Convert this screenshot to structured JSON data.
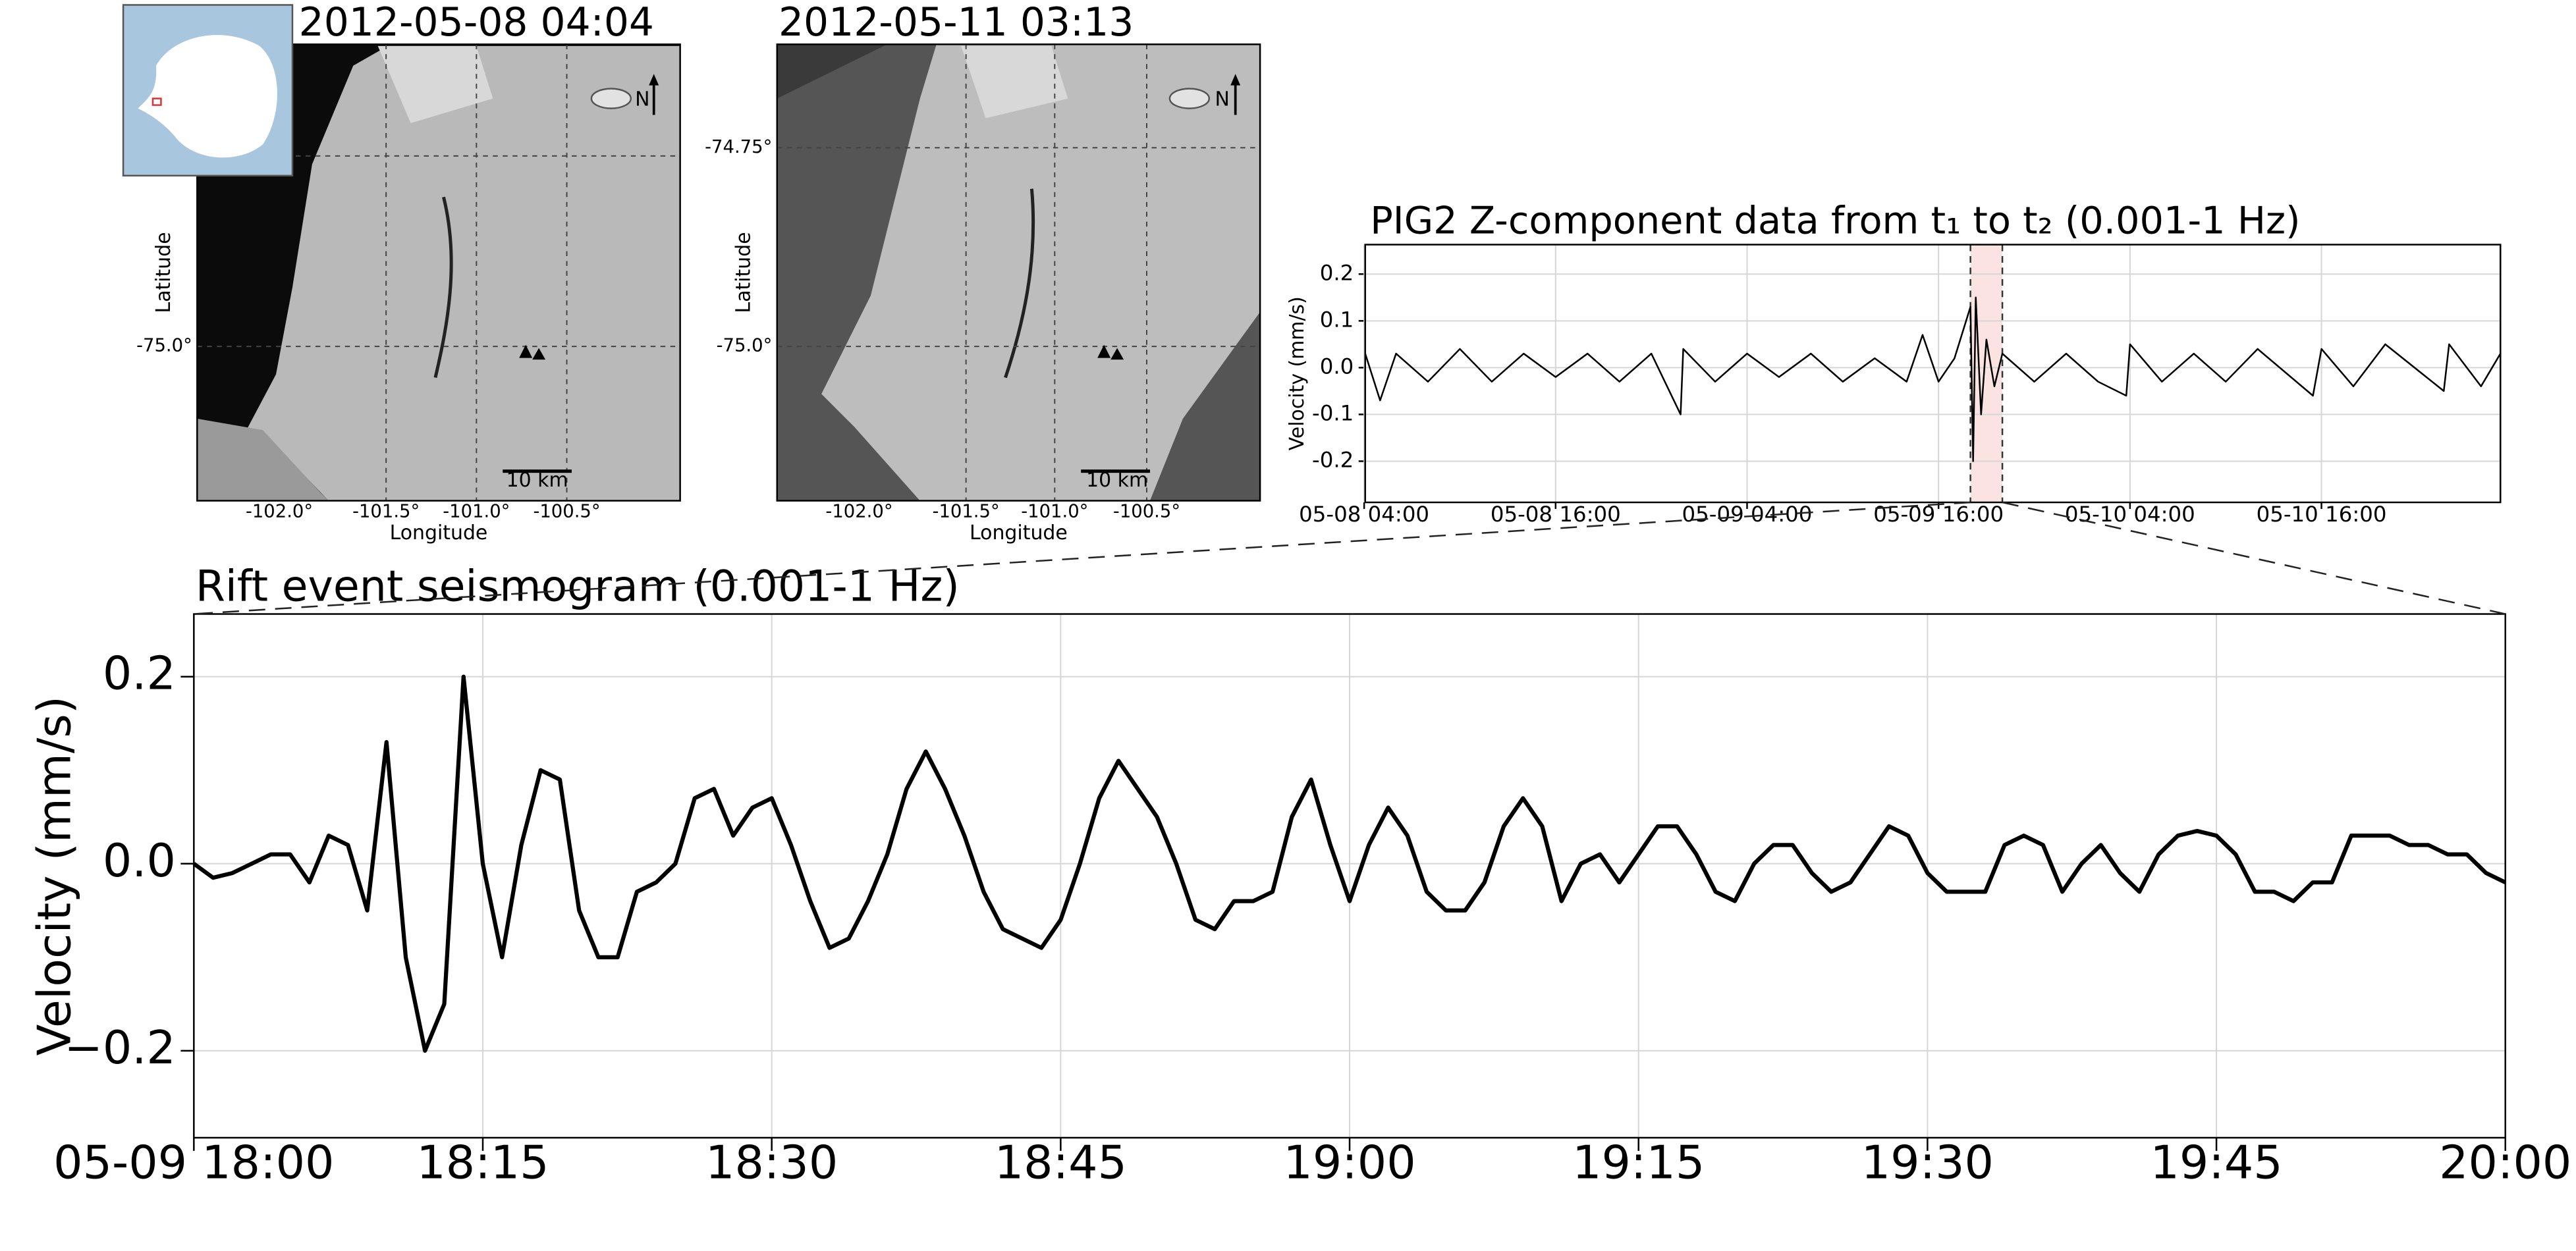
{
  "maps": [
    {
      "title": "2012-05-08 04:04",
      "xlabel": "Longitude",
      "ylabel": "Latitude",
      "xtick_labels": [
        "-102.0°",
        "-101.5°",
        "-101.0°",
        "-100.5°"
      ],
      "ytick_labels": [
        "-75.0°"
      ],
      "scalebar": "10 km",
      "north": "N"
    },
    {
      "title": "2012-05-11 03:13",
      "xlabel": "Longitude",
      "ylabel": "Latitude",
      "xtick_labels": [
        "-102.0°",
        "-101.5°",
        "-101.0°",
        "-100.5°"
      ],
      "ytick_labels": [
        "-74.75°",
        "-75.0°"
      ],
      "scalebar": "10 km",
      "north": "N"
    }
  ],
  "chart_data": [
    {
      "type": "line",
      "title": "PIG2 Z-component data from t₁ to t₂ (0.001-1 Hz)",
      "ylabel": "Velocity (mm/s)",
      "grid": true,
      "xlim": [
        "05-08 04:04",
        "05-11 03:13"
      ],
      "ylim": [
        -0.288,
        0.263
      ],
      "xticks": [
        "05-08 04:00",
        "05-08 16:00",
        "05-09 04:00",
        "05-09 16:00",
        "05-10 04:00",
        "05-10 16:00"
      ],
      "yticks": [
        0.2,
        0.1,
        {
          "value": 0,
          "label": "0.0"
        },
        -0.1,
        -0.2
      ],
      "highlight": [
        "05-09 18:00",
        "05-09 20:00"
      ],
      "highlight_color": "#fbe3e1",
      "x": [
        "05-08 04:04",
        "05-08 05:00",
        "05-08 06:00",
        "05-08 08:00",
        "05-08 10:00",
        "05-08 12:00",
        "05-08 14:00",
        "05-08 16:00",
        "05-08 18:00",
        "05-08 20:00",
        "05-08 22:00",
        "05-08 23:50",
        "05-09 00:00",
        "05-09 02:00",
        "05-09 04:00",
        "05-09 06:00",
        "05-09 08:00",
        "05-09 10:00",
        "05-09 12:00",
        "05-09 14:00",
        "05-09 15:00",
        "05-09 16:00",
        "05-09 17:00",
        "05-09 18:00",
        "05-09 18:10",
        "05-09 18:20",
        "05-09 18:40",
        "05-09 19:00",
        "05-09 19:30",
        "05-09 20:00",
        "05-09 22:00",
        "05-10 00:00",
        "05-10 02:00",
        "05-10 03:46",
        "05-10 04:00",
        "05-10 06:00",
        "05-10 08:00",
        "05-10 10:00",
        "05-10 12:00",
        "05-10 15:28",
        "05-10 16:00",
        "05-10 18:00",
        "05-10 20:00",
        "05-10 23:40",
        "05-11 00:00",
        "05-11 02:00",
        "05-11 03:13"
      ],
      "series": [
        {
          "name": "PIG2 Z",
          "color": "#000000",
          "values": [
            0.03,
            -0.07,
            0.03,
            -0.03,
            0.04,
            -0.03,
            0.03,
            -0.02,
            0.03,
            -0.03,
            0.03,
            -0.1,
            0.04,
            -0.03,
            0.03,
            -0.02,
            0.03,
            -0.03,
            0.02,
            -0.03,
            0.07,
            -0.03,
            0.02,
            0.13,
            -0.2,
            0.15,
            -0.1,
            0.06,
            -0.04,
            0.03,
            -0.03,
            0.03,
            -0.03,
            -0.06,
            0.05,
            -0.03,
            0.03,
            -0.03,
            0.04,
            -0.06,
            0.04,
            -0.04,
            0.05,
            -0.05,
            0.05,
            -0.04,
            0.03
          ]
        }
      ]
    },
    {
      "type": "line",
      "title": "Rift event seismogram (0.001-1 Hz)",
      "ylabel": "Velocity (mm/s)",
      "grid": true,
      "xlim": [
        "05-09 18:00",
        "05-09 20:00"
      ],
      "ylim": [
        -0.293,
        0.267
      ],
      "xticks": [
        "05-09 18:00",
        {
          "value": "05-09 18:15",
          "label": "18:15"
        },
        {
          "value": "05-09 18:30",
          "label": "18:30"
        },
        {
          "value": "05-09 18:45",
          "label": "18:45"
        },
        {
          "value": "05-09 19:00",
          "label": "19:00"
        },
        {
          "value": "05-09 19:15",
          "label": "19:15"
        },
        {
          "value": "05-09 19:30",
          "label": "19:30"
        },
        {
          "value": "05-09 19:45",
          "label": "19:45"
        },
        {
          "value": "05-09 20:00",
          "label": "20:00"
        }
      ],
      "yticks": [
        0.2,
        {
          "value": 0,
          "label": "0.0"
        },
        {
          "value": -0.2,
          "label": "−0.2"
        }
      ],
      "x": [
        "05-09 18:00",
        "05-09 18:01",
        "05-09 18:02",
        "05-09 18:03",
        "05-09 18:04",
        "05-09 18:05",
        "05-09 18:06",
        "05-09 18:07",
        "05-09 18:08",
        "05-09 18:09",
        "05-09 18:10",
        "05-09 18:11",
        "05-09 18:12",
        "05-09 18:13",
        "05-09 18:14",
        "05-09 18:15",
        "05-09 18:16",
        "05-09 18:17",
        "05-09 18:18",
        "05-09 18:19",
        "05-09 18:20",
        "05-09 18:21",
        "05-09 18:22",
        "05-09 18:23",
        "05-09 18:24",
        "05-09 18:25",
        "05-09 18:26",
        "05-09 18:27",
        "05-09 18:28",
        "05-09 18:29",
        "05-09 18:30",
        "05-09 18:31",
        "05-09 18:32",
        "05-09 18:33",
        "05-09 18:34",
        "05-09 18:35",
        "05-09 18:36",
        "05-09 18:37",
        "05-09 18:38",
        "05-09 18:39",
        "05-09 18:40",
        "05-09 18:41",
        "05-09 18:42",
        "05-09 18:43",
        "05-09 18:44",
        "05-09 18:45",
        "05-09 18:46",
        "05-09 18:47",
        "05-09 18:48",
        "05-09 18:49",
        "05-09 18:50",
        "05-09 18:51",
        "05-09 18:52",
        "05-09 18:53",
        "05-09 18:54",
        "05-09 18:55",
        "05-09 18:56",
        "05-09 18:57",
        "05-09 18:58",
        "05-09 18:59",
        "05-09 19:00",
        "05-09 19:01",
        "05-09 19:02",
        "05-09 19:03",
        "05-09 19:04",
        "05-09 19:05",
        "05-09 19:06",
        "05-09 19:07",
        "05-09 19:08",
        "05-09 19:09",
        "05-09 19:10",
        "05-09 19:11",
        "05-09 19:12",
        "05-09 19:13",
        "05-09 19:14",
        "05-09 19:15",
        "05-09 19:16",
        "05-09 19:17",
        "05-09 19:18",
        "05-09 19:19",
        "05-09 19:20",
        "05-09 19:21",
        "05-09 19:22",
        "05-09 19:23",
        "05-09 19:24",
        "05-09 19:25",
        "05-09 19:26",
        "05-09 19:27",
        "05-09 19:28",
        "05-09 19:29",
        "05-09 19:30",
        "05-09 19:31",
        "05-09 19:32",
        "05-09 19:33",
        "05-09 19:34",
        "05-09 19:35",
        "05-09 19:36",
        "05-09 19:37",
        "05-09 19:38",
        "05-09 19:39",
        "05-09 19:40",
        "05-09 19:41",
        "05-09 19:42",
        "05-09 19:43",
        "05-09 19:44",
        "05-09 19:45",
        "05-09 19:46",
        "05-09 19:47",
        "05-09 19:48",
        "05-09 19:49",
        "05-09 19:50",
        "05-09 19:51",
        "05-09 19:52",
        "05-09 19:53",
        "05-09 19:54",
        "05-09 19:55",
        "05-09 19:56",
        "05-09 19:57",
        "05-09 19:58",
        "05-09 19:59",
        "05-09 20:00"
      ],
      "series": [
        {
          "name": "Rift event",
          "color": "#000000",
          "values": [
            0,
            -0.015,
            -0.01,
            0,
            0.01,
            0.01,
            -0.02,
            0.03,
            0.02,
            -0.05,
            0.13,
            -0.1,
            -0.2,
            -0.15,
            0.2,
            0,
            -0.1,
            0.02,
            0.1,
            0.09,
            -0.05,
            -0.1,
            -0.1,
            -0.03,
            -0.02,
            0,
            0.07,
            0.08,
            0.03,
            0.06,
            0.07,
            0.02,
            -0.04,
            -0.09,
            -0.08,
            -0.04,
            0.01,
            0.08,
            0.12,
            0.08,
            0.03,
            -0.03,
            -0.07,
            -0.08,
            -0.09,
            -0.06,
            0,
            0.07,
            0.11,
            0.08,
            0.05,
            0,
            -0.06,
            -0.07,
            -0.04,
            -0.04,
            -0.03,
            0.05,
            0.09,
            0.02,
            -0.04,
            0.02,
            0.06,
            0.03,
            -0.03,
            -0.05,
            -0.05,
            -0.02,
            0.04,
            0.07,
            0.04,
            -0.04,
            0,
            0.01,
            -0.02,
            0.01,
            0.04,
            0.04,
            0.01,
            -0.03,
            -0.04,
            0,
            0.02,
            0.02,
            -0.01,
            -0.03,
            -0.02,
            0.01,
            0.04,
            0.03,
            -0.01,
            -0.03,
            -0.03,
            -0.03,
            0.02,
            0.03,
            0.02,
            -0.03,
            0,
            0.02,
            -0.01,
            -0.03,
            0.01,
            0.03,
            0.035,
            0.03,
            0.01,
            -0.03,
            -0.03,
            -0.04,
            -0.02,
            -0.02,
            0.03,
            0.03,
            0.03,
            0.02,
            0.02,
            0.01,
            0.01,
            -0.01,
            -0.02
          ]
        }
      ]
    }
  ]
}
